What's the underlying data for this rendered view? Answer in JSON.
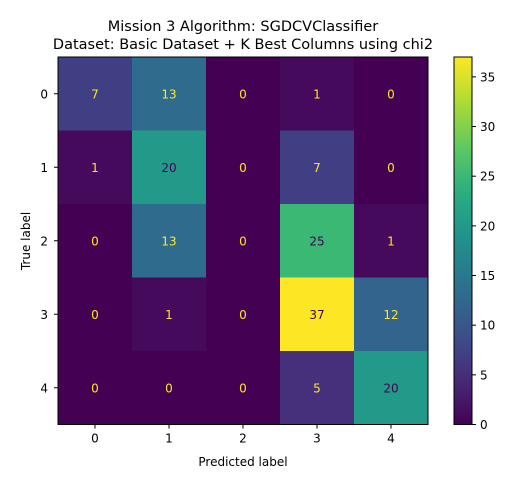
{
  "chart_data": {
    "type": "heatmap",
    "title_line1": "Mission 3 Algorithm: SGDCVClassifier",
    "title_line2": "Dataset: Basic Dataset + K Best Columns using chi2",
    "xlabel": "Predicted label",
    "ylabel": "True label",
    "x_categories": [
      "0",
      "1",
      "2",
      "3",
      "4"
    ],
    "y_categories": [
      "0",
      "1",
      "2",
      "3",
      "4"
    ],
    "matrix": [
      [
        7,
        13,
        0,
        1,
        0
      ],
      [
        1,
        20,
        0,
        7,
        0
      ],
      [
        0,
        13,
        0,
        25,
        1
      ],
      [
        0,
        1,
        0,
        37,
        12
      ],
      [
        0,
        0,
        0,
        5,
        20
      ]
    ],
    "colormap": "viridis",
    "vmin": 0,
    "vmax": 37,
    "colorbar_ticks": [
      0,
      5,
      10,
      15,
      20,
      25,
      30,
      35
    ],
    "text_color_dark": "#440154",
    "text_color_light": "#fde725"
  }
}
